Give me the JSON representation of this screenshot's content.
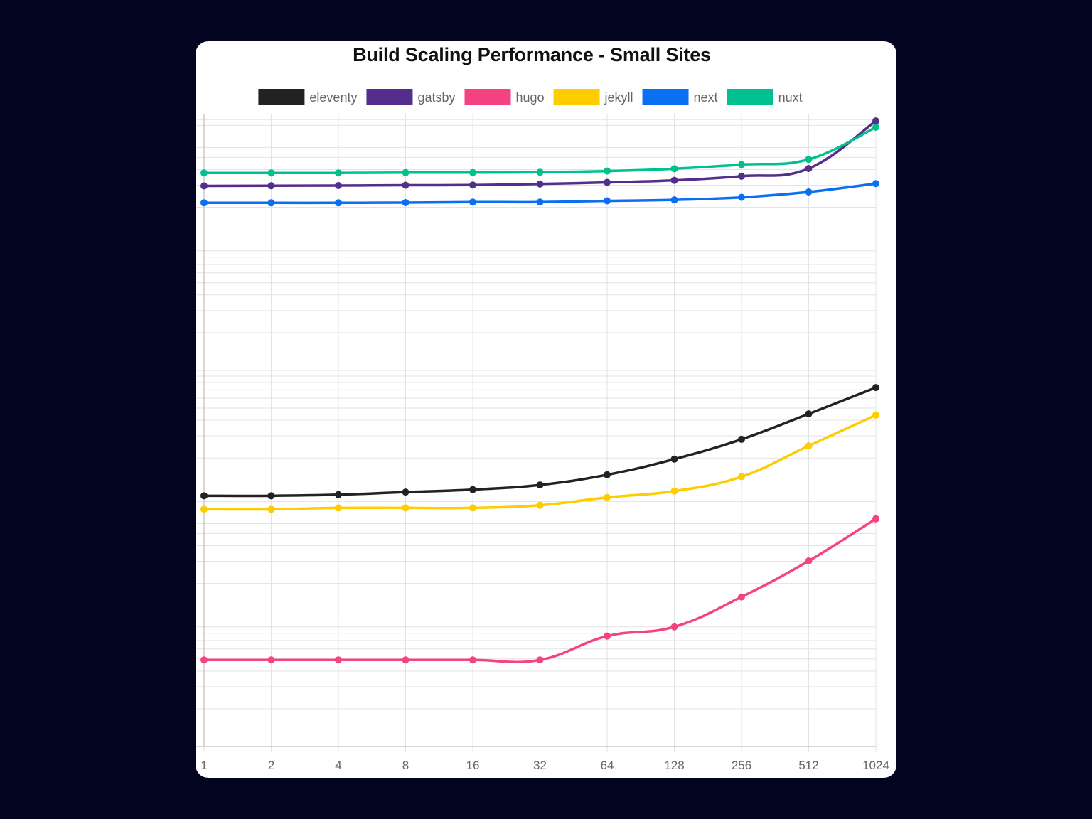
{
  "chart_data": {
    "type": "line",
    "title": "Build Scaling Performance - Small Sites",
    "x": [
      "1",
      "2",
      "4",
      "8",
      "16",
      "32",
      "64",
      "128",
      "256",
      "512",
      "1024"
    ],
    "y_scale": "log",
    "y_tick_labels_visible": false,
    "grid": true,
    "legend_position": "top",
    "series": [
      {
        "name": "eleventy",
        "color": "#222222",
        "values": [
          0.1,
          0.1,
          0.102,
          0.107,
          0.112,
          0.122,
          0.147,
          0.196,
          0.282,
          0.45,
          0.73
        ]
      },
      {
        "name": "gatsby",
        "color": "#552e8c",
        "values": [
          29.6,
          29.7,
          29.8,
          30.0,
          30.1,
          30.7,
          31.6,
          32.8,
          35.4,
          40.8,
          97.7
        ]
      },
      {
        "name": "hugo",
        "color": "#f34383",
        "values": [
          0.0049,
          0.0049,
          0.0049,
          0.0049,
          0.0049,
          0.0049,
          0.0076,
          0.009,
          0.0156,
          0.0302,
          0.0655
        ]
      },
      {
        "name": "jekyll",
        "color": "#fdcd00",
        "values": [
          0.078,
          0.078,
          0.08,
          0.08,
          0.08,
          0.084,
          0.097,
          0.109,
          0.142,
          0.25,
          0.44
        ]
      },
      {
        "name": "next",
        "color": "#0b6ff2",
        "values": [
          21.7,
          21.7,
          21.7,
          21.8,
          22.0,
          22.0,
          22.5,
          22.9,
          24.0,
          26.5,
          30.9
        ]
      },
      {
        "name": "nuxt",
        "color": "#00c08e",
        "values": [
          37.6,
          37.6,
          37.6,
          37.8,
          37.8,
          38.1,
          38.9,
          40.6,
          43.8,
          48.2,
          87.0
        ]
      }
    ]
  }
}
